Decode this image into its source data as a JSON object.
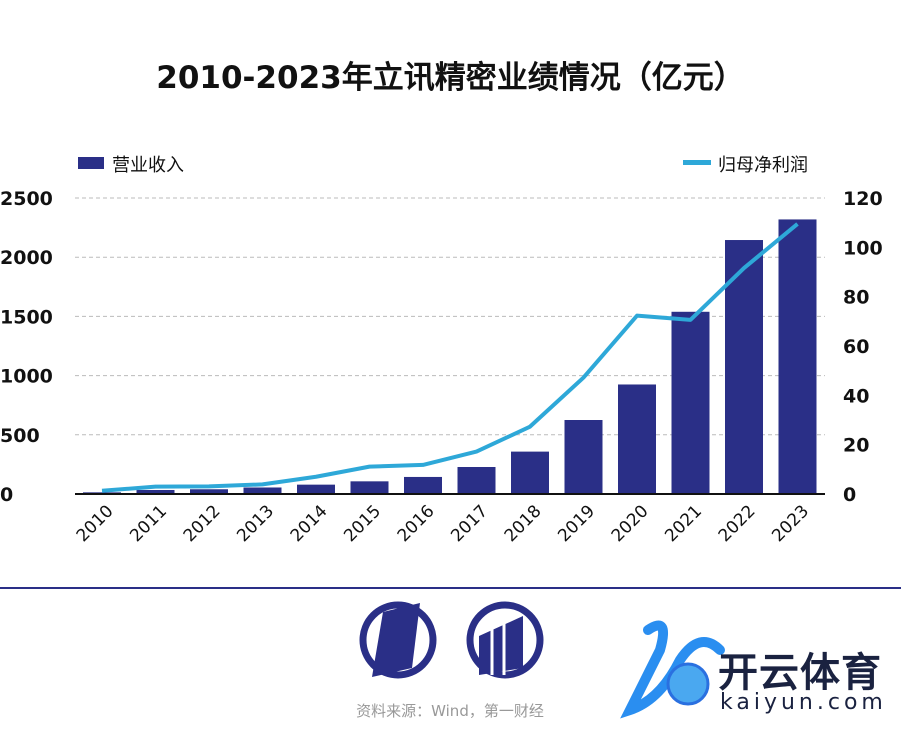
{
  "title": "2010-2023年立讯精密业绩情况（亿元）",
  "source": "资料来源：Wind，第一财经",
  "brand": {
    "name_cn": "开云体育",
    "name_en": "kaiyun.com"
  },
  "colors": {
    "bar": "#2a2f87",
    "line": "#2ea8d8",
    "divider": "#2a2f87"
  },
  "chart_data": {
    "type": "bar+line",
    "title": "2010-2023年立讯精密业绩情况（亿元）",
    "categories": [
      "2010",
      "2011",
      "2012",
      "2013",
      "2014",
      "2015",
      "2016",
      "2017",
      "2018",
      "2019",
      "2020",
      "2021",
      "2022",
      "2023"
    ],
    "series": [
      {
        "name": "营业收入",
        "type": "bar",
        "axis": "left",
        "values": [
          14,
          34,
          40,
          55,
          79,
          107,
          144,
          228,
          358,
          625,
          925,
          1539,
          2145,
          2319
        ]
      },
      {
        "name": "归母净利润",
        "type": "line",
        "axis": "right",
        "values": [
          1.3,
          3.0,
          3.1,
          3.9,
          7.0,
          11.1,
          11.8,
          17.2,
          27.3,
          47.2,
          72.3,
          70.6,
          91.6,
          109.5
        ]
      }
    ],
    "y_left": {
      "range": [
        0,
        2500
      ],
      "ticks": [
        "0",
        "500",
        "1000",
        "1500",
        "2000",
        "2500"
      ]
    },
    "y_right": {
      "range": [
        0,
        120
      ],
      "ticks": [
        "0",
        "20",
        "40",
        "60",
        "80",
        "100",
        "120"
      ]
    },
    "grid": true,
    "legend": "top"
  }
}
